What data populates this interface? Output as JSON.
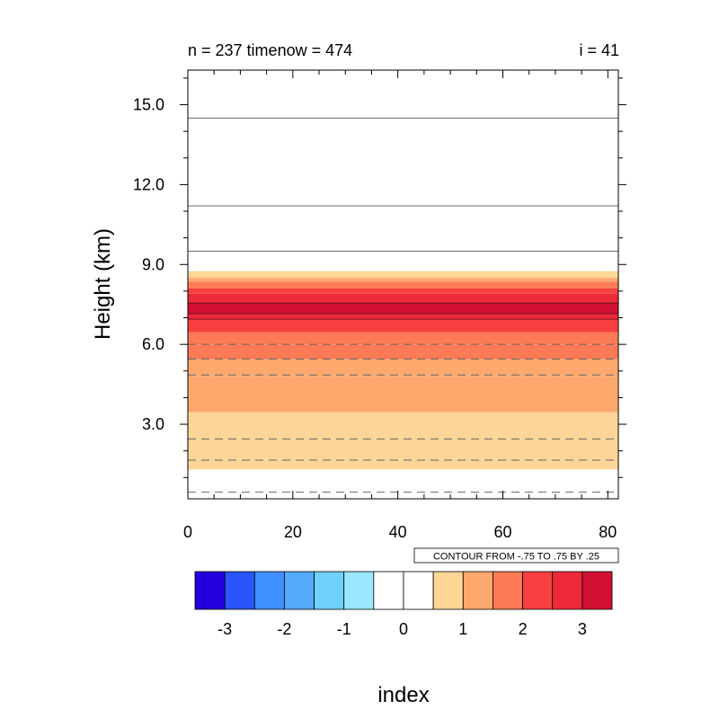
{
  "chart_data": {
    "type": "heatmap",
    "title_left": "n = 237 timenow = 474",
    "title_right": "i = 41",
    "ylabel": "Height (km)",
    "xlabel": "index",
    "xlim": [
      0,
      82
    ],
    "ylim": [
      0.2,
      16.3
    ],
    "xticks": [
      0,
      20,
      40,
      60,
      80
    ],
    "xtick_labels": [
      "0",
      "20",
      "40",
      "60",
      "80"
    ],
    "yticks": [
      3.0,
      6.0,
      9.0,
      12.0,
      15.0
    ],
    "ytick_labels": [
      "3.0",
      "6.0",
      "9.0",
      "12.0",
      "15.0"
    ],
    "bands": [
      {
        "y0": 1.3,
        "y1": 3.45,
        "color": "#fdd697"
      },
      {
        "y0": 3.45,
        "y1": 4.8,
        "color": "#fda96e"
      },
      {
        "y0": 4.8,
        "y1": 5.45,
        "color": "#fda96e"
      },
      {
        "y0": 5.45,
        "y1": 6.0,
        "color": "#fd7a57"
      },
      {
        "y0": 6.0,
        "y1": 6.45,
        "color": "#fd7a57"
      },
      {
        "y0": 6.45,
        "y1": 6.95,
        "color": "#f84040"
      },
      {
        "y0": 6.95,
        "y1": 7.15,
        "color": "#ee2a3a"
      },
      {
        "y0": 7.15,
        "y1": 7.55,
        "color": "#d21034"
      },
      {
        "y0": 7.55,
        "y1": 7.9,
        "color": "#ee2a3a"
      },
      {
        "y0": 7.9,
        "y1": 8.1,
        "color": "#f84040"
      },
      {
        "y0": 8.1,
        "y1": 8.35,
        "color": "#fd7a57"
      },
      {
        "y0": 8.35,
        "y1": 8.5,
        "color": "#fda96e"
      },
      {
        "y0": 8.5,
        "y1": 8.75,
        "color": "#fdd697"
      }
    ],
    "contours": [
      {
        "y": 0.45,
        "style": "dashed"
      },
      {
        "y": 1.65,
        "style": "dashed"
      },
      {
        "y": 2.45,
        "style": "dashed"
      },
      {
        "y": 4.85,
        "style": "dashed"
      },
      {
        "y": 5.45,
        "style": "dashed"
      },
      {
        "y": 6.0,
        "style": "dashed"
      },
      {
        "y": 6.95,
        "style": "solid"
      },
      {
        "y": 7.15,
        "style": "solid"
      },
      {
        "y": 7.55,
        "style": "solid"
      },
      {
        "y": 9.5,
        "style": "solid"
      },
      {
        "y": 11.2,
        "style": "solid"
      },
      {
        "y": 14.5,
        "style": "solid"
      }
    ],
    "annotation": "CONTOUR FROM -.75 TO .75 BY .25",
    "colorbar": {
      "colors": [
        "#2200dd",
        "#2a55fc",
        "#3f8ffe",
        "#54aafd",
        "#70d0fc",
        "#9ae8fd",
        "#ffffff",
        "#ffffff",
        "#fdd697",
        "#fda96e",
        "#fd7a57",
        "#f84040",
        "#ee2a3a",
        "#d21034"
      ],
      "labels": [
        "-3",
        "-2",
        "-1",
        "0",
        "1",
        "2",
        "3"
      ],
      "label_after_box": [
        1,
        3,
        5,
        7,
        9,
        11,
        13
      ]
    }
  }
}
